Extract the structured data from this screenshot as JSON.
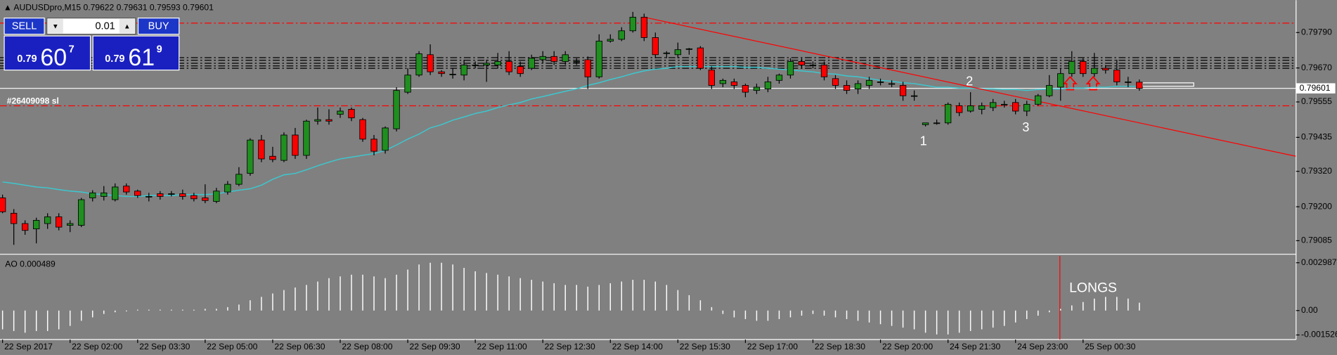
{
  "chart_data": [
    {
      "type": "candlestick",
      "title": "AUDUSDpro,M15  0.79622 0.79631 0.79593 0.79601",
      "categories": [
        "22 Sep 2017",
        null,
        null,
        null,
        null,
        null,
        "22 Sep 02:00",
        null,
        null,
        null,
        null,
        null,
        "22 Sep 03:30",
        null,
        null,
        null,
        null,
        null,
        "22 Sep 05:00",
        null,
        null,
        null,
        null,
        null,
        "22 Sep 06:30",
        null,
        null,
        null,
        null,
        null,
        "22 Sep 08:00",
        null,
        null,
        null,
        null,
        null,
        "22 Sep 09:30",
        null,
        null,
        null,
        null,
        null,
        "22 Sep 11:00",
        null,
        null,
        null,
        null,
        null,
        "22 Sep 12:30",
        null,
        null,
        null,
        null,
        null,
        "22 Sep 14:00",
        null,
        null,
        null,
        null,
        null,
        "22 Sep 15:30",
        null,
        null,
        null,
        null,
        null,
        "22 Sep 17:00",
        null,
        null,
        null,
        null,
        null,
        "22 Sep 18:30",
        null,
        null,
        null,
        null,
        null,
        "22 Sep 20:00",
        null,
        null,
        null,
        null,
        null,
        "24 Sep 21:30",
        null,
        null,
        null,
        null,
        null,
        "24 Sep 23:00",
        null,
        null,
        null,
        null,
        null,
        "25 Sep 00:30",
        null,
        null,
        null,
        null,
        null
      ],
      "open": [
        0.7923,
        0.79178,
        0.79143,
        0.79125,
        0.79143,
        0.79166,
        0.79137,
        0.79137,
        0.7923,
        0.79235,
        0.79224,
        0.7927,
        0.79253,
        0.79235,
        0.79244,
        0.79244,
        0.79244,
        0.79238,
        0.7923,
        0.79218,
        0.7925,
        0.79276,
        0.79313,
        0.79426,
        0.79371,
        0.79357,
        0.79443,
        0.79374,
        0.7949,
        0.79495,
        0.79513,
        0.7953,
        0.79495,
        0.79429,
        0.79391,
        0.79464,
        0.79588,
        0.79646,
        0.79715,
        0.79657,
        0.79649,
        0.79646,
        0.7968,
        0.7968,
        0.7968,
        0.79692,
        0.79675,
        0.79669,
        0.79698,
        0.79709,
        0.79692,
        0.79692,
        0.79698,
        0.7964,
        0.79761,
        0.79767,
        0.79796,
        0.79842,
        0.79773,
        0.79721,
        0.79715,
        0.79735,
        0.79738,
        0.79663,
        0.79617,
        0.79623,
        0.79611,
        0.79594,
        0.79599,
        0.79628,
        0.79646,
        0.79692,
        0.7968,
        0.7968,
        0.79634,
        0.79611,
        0.79599,
        0.79611,
        0.79623,
        0.79617,
        0.79611,
        0.79576,
        0.79478,
        0.79484,
        0.79484,
        0.79542,
        0.79524,
        0.7953,
        0.79536,
        0.79547,
        0.79553,
        0.79524,
        0.79547,
        0.79576,
        0.79605,
        0.79651,
        0.79692,
        0.79651,
        0.79669,
        0.79663,
        0.79623,
        0.79622
      ],
      "high": [
        0.79241,
        0.79192,
        0.79154,
        0.79163,
        0.79178,
        0.79178,
        0.79154,
        0.7923,
        0.79256,
        0.7927,
        0.79279,
        0.79279,
        0.79258,
        0.79247,
        0.79253,
        0.79253,
        0.79258,
        0.79247,
        0.79276,
        0.79264,
        0.79287,
        0.79334,
        0.79432,
        0.79443,
        0.79403,
        0.79452,
        0.79467,
        0.79495,
        0.79536,
        0.7953,
        0.79536,
        0.79536,
        0.79501,
        0.79443,
        0.79472,
        0.79605,
        0.79669,
        0.79727,
        0.7975,
        0.79663,
        0.79669,
        0.79698,
        0.79692,
        0.79698,
        0.79721,
        0.79727,
        0.79692,
        0.79715,
        0.79727,
        0.79727,
        0.79727,
        0.79703,
        0.79709,
        0.79784,
        0.79784,
        0.79808,
        0.7986,
        0.79854,
        0.7979,
        0.79727,
        0.79756,
        0.79738,
        0.79744,
        0.79675,
        0.79634,
        0.79634,
        0.79617,
        0.79617,
        0.7964,
        0.79651,
        0.79703,
        0.79703,
        0.79692,
        0.79692,
        0.79646,
        0.79628,
        0.79628,
        0.7964,
        0.79634,
        0.79628,
        0.79623,
        0.79594,
        0.79484,
        0.79495,
        0.79553,
        0.79553,
        0.79588,
        0.79553,
        0.79565,
        0.79559,
        0.79565,
        0.79559,
        0.79582,
        0.79646,
        0.79669,
        0.79727,
        0.79703,
        0.79721,
        0.7968,
        0.79698,
        0.7964,
        0.79631
      ],
      "low": [
        0.79178,
        0.79071,
        0.79105,
        0.79076,
        0.79125,
        0.7912,
        0.79114,
        0.79131,
        0.79218,
        0.79221,
        0.79218,
        0.79241,
        0.7923,
        0.79218,
        0.79224,
        0.79235,
        0.79224,
        0.79218,
        0.79212,
        0.79212,
        0.79241,
        0.7927,
        0.79305,
        0.79351,
        0.79351,
        0.79351,
        0.79362,
        0.79362,
        0.79478,
        0.79478,
        0.79501,
        0.7949,
        0.7942,
        0.79374,
        0.7938,
        0.79455,
        0.79582,
        0.7964,
        0.79646,
        0.7964,
        0.79634,
        0.79628,
        0.79669,
        0.79623,
        0.79669,
        0.79646,
        0.7964,
        0.79663,
        0.79686,
        0.7968,
        0.7968,
        0.7968,
        0.79599,
        0.79634,
        0.79756,
        0.79761,
        0.7979,
        0.79761,
        0.79703,
        0.79703,
        0.79703,
        0.79715,
        0.79663,
        0.79599,
        0.79605,
        0.79599,
        0.79571,
        0.79582,
        0.79588,
        0.79617,
        0.79634,
        0.79669,
        0.79669,
        0.79628,
        0.79599,
        0.79582,
        0.79582,
        0.79599,
        0.79611,
        0.79605,
        0.79559,
        0.79559,
        0.79472,
        0.79478,
        0.79478,
        0.79507,
        0.79519,
        0.79513,
        0.79524,
        0.79536,
        0.79513,
        0.79507,
        0.79542,
        0.79571,
        0.79559,
        0.7964,
        0.7964,
        0.7964,
        0.79651,
        0.79611,
        0.79605,
        0.79593
      ],
      "close": [
        0.79183,
        0.79143,
        0.7912,
        0.79154,
        0.79166,
        0.79131,
        0.79143,
        0.79224,
        0.79247,
        0.79247,
        0.79267,
        0.7925,
        0.79238,
        0.79235,
        0.79235,
        0.79244,
        0.79235,
        0.79227,
        0.79221,
        0.79253,
        0.79276,
        0.7931,
        0.79426,
        0.79362,
        0.7936,
        0.79443,
        0.79374,
        0.7949,
        0.79495,
        0.7949,
        0.79524,
        0.79501,
        0.79429,
        0.79388,
        0.79467,
        0.79594,
        0.79646,
        0.79718,
        0.79657,
        0.79651,
        0.79649,
        0.7968,
        0.7968,
        0.79686,
        0.79692,
        0.79657,
        0.79651,
        0.79703,
        0.79709,
        0.79692,
        0.79715,
        0.79692,
        0.7964,
        0.79761,
        0.79767,
        0.79796,
        0.79842,
        0.79773,
        0.79715,
        0.79721,
        0.79732,
        0.79735,
        0.79669,
        0.79611,
        0.79628,
        0.79611,
        0.79588,
        0.79605,
        0.79623,
        0.79646,
        0.79692,
        0.7968,
        0.7968,
        0.7964,
        0.79611,
        0.79594,
        0.79617,
        0.79628,
        0.79623,
        0.79617,
        0.79576,
        0.79576,
        0.79484,
        0.79484,
        0.79547,
        0.79519,
        0.79542,
        0.79542,
        0.79553,
        0.79547,
        0.79524,
        0.79547,
        0.79576,
        0.79611,
        0.79651,
        0.79692,
        0.79651,
        0.79669,
        0.79663,
        0.79623,
        0.79623,
        0.79601
      ],
      "up_color": "#1f8f1f",
      "down_color": "#ff0000",
      "overlay": {
        "color": "#3cc8d0",
        "values": [
          0.79284,
          0.79279,
          0.79273,
          0.79267,
          0.79264,
          0.79258,
          0.79253,
          0.7925,
          0.79244,
          0.79241,
          0.79238,
          0.79235,
          0.79235,
          0.79238,
          0.79238,
          0.79238,
          0.79241,
          0.79241,
          0.79241,
          0.79244,
          0.7925,
          0.79256,
          0.79261,
          0.79273,
          0.79293,
          0.79308,
          0.79313,
          0.79325,
          0.79339,
          0.79351,
          0.79362,
          0.79368,
          0.79374,
          0.7938,
          0.79391,
          0.79409,
          0.79429,
          0.79446,
          0.79467,
          0.79478,
          0.79493,
          0.79504,
          0.79516,
          0.79524,
          0.79536,
          0.79545,
          0.79553,
          0.79565,
          0.79573,
          0.79582,
          0.79591,
          0.79599,
          0.79611,
          0.7962,
          0.79631,
          0.7964,
          0.79651,
          0.7966,
          0.79666,
          0.79669,
          0.79675,
          0.79675,
          0.79675,
          0.79675,
          0.79675,
          0.79675,
          0.79672,
          0.79672,
          0.79669,
          0.79666,
          0.79663,
          0.7966,
          0.79657,
          0.79651,
          0.79649,
          0.79643,
          0.7964,
          0.79634,
          0.79628,
          0.79625,
          0.7962,
          0.79617,
          0.79611,
          0.79605,
          0.79605,
          0.79602,
          0.79602,
          0.79599,
          0.79599,
          0.79597,
          0.79597,
          0.79594,
          0.79597,
          0.79599,
          0.79599,
          0.79602,
          0.79602,
          0.79605,
          0.79605,
          0.79608,
          0.79608,
          0.79608
        ]
      },
      "levels": [
        {
          "value": 0.79822,
          "color": "#ff0000"
        },
        {
          "value": 0.79542,
          "color": "#ff0000"
        },
        {
          "value": 0.79705,
          "color": "#000000"
        },
        {
          "value": 0.79696,
          "color": "#000000"
        },
        {
          "value": 0.79686,
          "color": "#000000"
        },
        {
          "value": 0.79677,
          "color": "#000000"
        },
        {
          "value": 0.79669,
          "color": "#000000"
        }
      ],
      "trendline": {
        "x": [
          57,
          114.9
        ],
        "values": [
          0.79842,
          0.79371
        ],
        "color": "#ff0000"
      },
      "current_price": 0.79601,
      "order_label": "#26409098 sl",
      "annotations": [
        "1",
        "2",
        "3"
      ],
      "ylim": [
        0.79042,
        0.79894
      ],
      "yticks": [
        {
          "value": 0.7979,
          "label": "0.79790"
        },
        {
          "value": 0.7967,
          "label": "0.79670"
        },
        0.79555,
        0.79435,
        {
          "value": 0.7932,
          "label": "0.79320"
        },
        {
          "value": 0.792,
          "label": "0.79200"
        },
        0.79085
      ]
    },
    {
      "type": "bar",
      "title": "AO 0.000489",
      "color": "#ffffff",
      "values": [
        -0.001173,
        -0.001279,
        -0.001386,
        -0.001279,
        -0.001279,
        -0.001173,
        -0.000959,
        -0.00064,
        -0.000426,
        -0.000213,
        -0.000107,
        -5.3e-05,
        5.3e-05,
        5.3e-05,
        5.3e-05,
        5.3e-05,
        5.3e-05,
        5.3e-05,
        0.000107,
        0.000107,
        0.000213,
        0.000373,
        0.00064,
        0.000853,
        0.001066,
        0.001279,
        0.001439,
        0.001599,
        0.001812,
        0.002025,
        0.002132,
        0.002239,
        0.002239,
        0.002132,
        0.002025,
        0.002239,
        0.002558,
        0.002878,
        0.002985,
        0.002985,
        0.002878,
        0.002665,
        0.002452,
        0.002345,
        0.002239,
        0.002132,
        0.002025,
        0.001919,
        0.001812,
        0.001706,
        0.001599,
        0.001599,
        0.001492,
        0.001599,
        0.001706,
        0.001812,
        0.001919,
        0.001919,
        0.001812,
        0.001599,
        0.001279,
        0.000959,
        0.00064,
        0.000213,
        -0.000213,
        -0.000426,
        -0.000533,
        -0.00064,
        -0.00064,
        -0.000533,
        -0.000426,
        -0.00032,
        -0.000213,
        -0.00032,
        -0.000426,
        -0.000533,
        -0.00064,
        -0.000746,
        -0.000853,
        -0.000959,
        -0.001066,
        -0.001173,
        -0.001386,
        -0.001492,
        -0.001492,
        -0.001386,
        -0.001279,
        -0.001173,
        -0.001066,
        -0.000959,
        -0.000746,
        -0.000533,
        -0.00032,
        -0.000107,
        0.000107,
        0.00032,
        0.000533,
        0.000746,
        0.000853,
        0.000853,
        0.000746,
        0.000489
      ],
      "annotation": "LONGS",
      "ylim": [
        -0.00181,
        0.00341
      ],
      "yticks": [
        0.002987,
        {
          "value": 0,
          "label": "0.00"
        },
        -0.001526
      ]
    }
  ],
  "trade_panel": {
    "sell": {
      "label": "SELL",
      "prefix": "0.79",
      "big": "60",
      "small": "7"
    },
    "buy": {
      "label": "BUY",
      "prefix": "0.79",
      "big": "61",
      "small": "9"
    },
    "lot": "0.01"
  }
}
